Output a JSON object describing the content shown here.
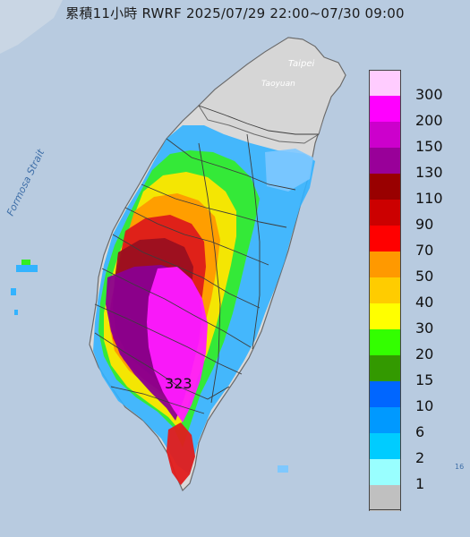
{
  "title": "累積11小時 RWRF 2025/07/29 22:00~07/30 09:00",
  "map": {
    "places": {
      "taipei": "Taipei",
      "taoyuan": "Taoyuan",
      "strait": "Formosa Strait"
    },
    "max_value": "323",
    "edge_label": "16"
  },
  "legend": {
    "colors": [
      {
        "value": "300",
        "color": "#ffccff"
      },
      {
        "value": "200",
        "color": "#ff00ff"
      },
      {
        "value": "150",
        "color": "#cc00cc"
      },
      {
        "value": "130",
        "color": "#990099"
      },
      {
        "value": "110",
        "color": "#990000"
      },
      {
        "value": "90",
        "color": "#cc0000"
      },
      {
        "value": "70",
        "color": "#ff0000"
      },
      {
        "value": "50",
        "color": "#ff9900"
      },
      {
        "value": "40",
        "color": "#ffcc00"
      },
      {
        "value": "30",
        "color": "#ffff00"
      },
      {
        "value": "20",
        "color": "#33ff00"
      },
      {
        "value": "15",
        "color": "#339900"
      },
      {
        "value": "10",
        "color": "#0066ff"
      },
      {
        "value": "6",
        "color": "#0099ff"
      },
      {
        "value": "2",
        "color": "#00ccff"
      },
      {
        "value": "1",
        "color": "#99ffff"
      },
      {
        "value": "",
        "color": "#c0c0c0"
      }
    ]
  }
}
